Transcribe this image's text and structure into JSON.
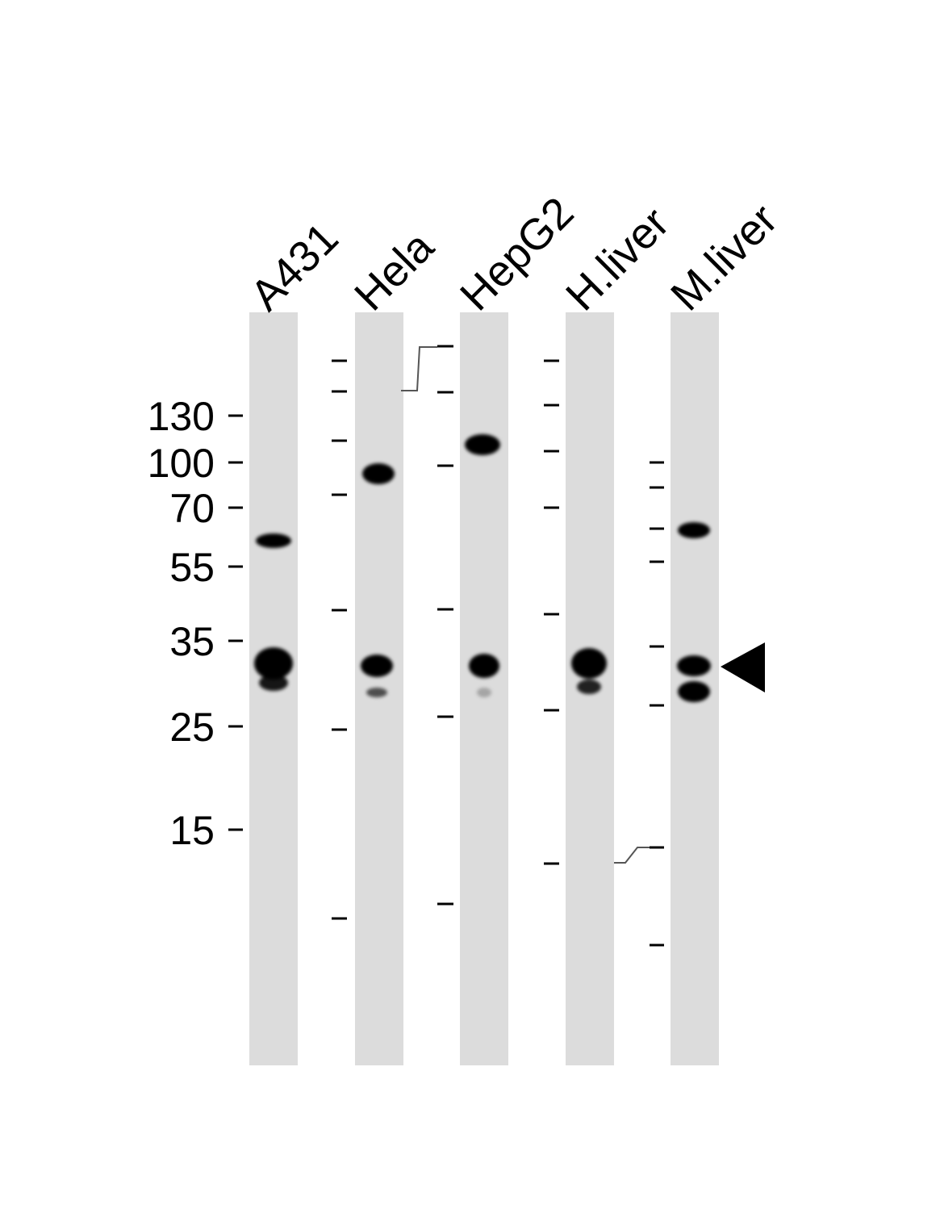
{
  "lanes": [
    {
      "label": "A431"
    },
    {
      "label": "Hela"
    },
    {
      "label": "HepG2"
    },
    {
      "label": "H.liver"
    },
    {
      "label": "M.liver"
    }
  ],
  "mw_markers": {
    "unit": "",
    "labels": [
      "130",
      "100",
      "70",
      "55",
      "35",
      "25",
      "15"
    ]
  },
  "colors": {
    "lane_background": "#dcdcdc",
    "band": "#000000",
    "marker_tick": "#000000"
  },
  "arrow": {
    "icon": "arrowhead-left-icon",
    "target_lane": "M.liver"
  }
}
